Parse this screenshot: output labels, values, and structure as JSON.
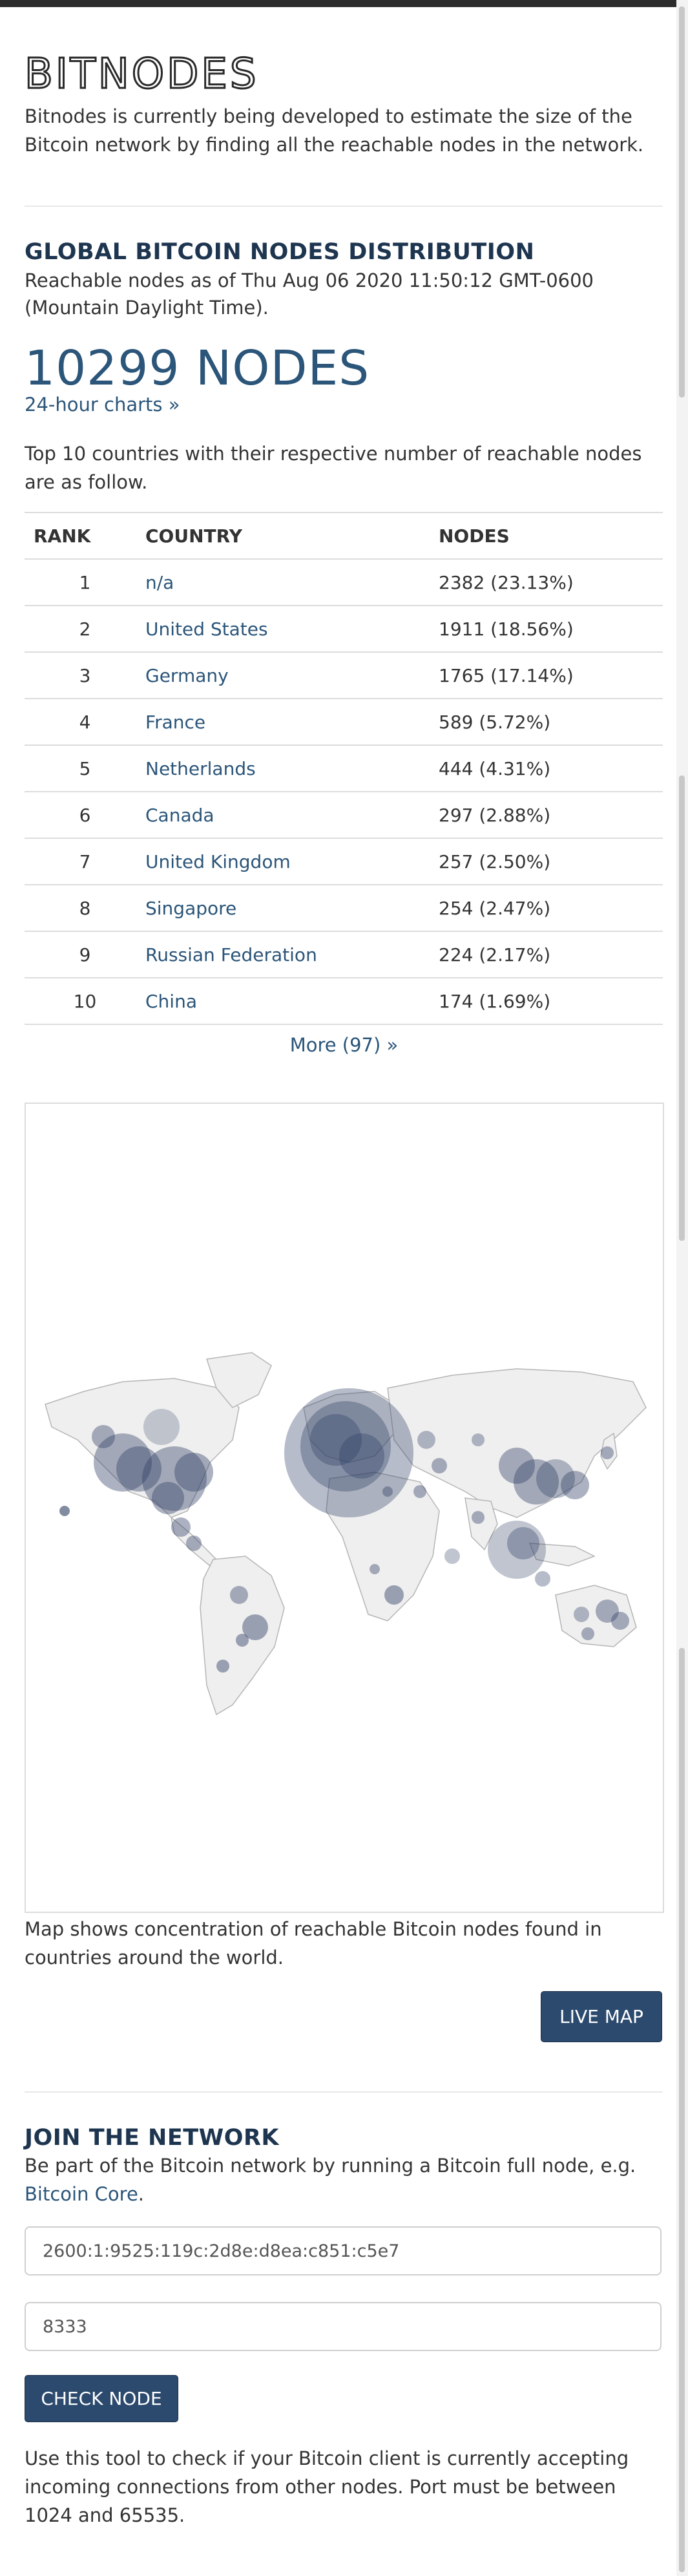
{
  "brand": {
    "name": "BITNODES"
  },
  "intro": "Bitnodes is currently being developed to estimate the size of the Bitcoin network by finding all the reachable nodes in the network.",
  "distribution": {
    "heading": "GLOBAL BITCOIN NODES DISTRIBUTION",
    "reachable_as_of": "Reachable nodes as of Thu Aug 06 2020 11:50:12 GMT-0600 (Mountain Daylight Time).",
    "total_nodes": "10299 NODES",
    "charts_link": "24-hour charts »",
    "top10_text": "Top 10 countries with their respective number of reachable nodes are as follow.",
    "columns": [
      "RANK",
      "COUNTRY",
      "NODES"
    ],
    "rows": [
      {
        "rank": "1",
        "country": "n/a",
        "nodes": "2382 (23.13%)"
      },
      {
        "rank": "2",
        "country": "United States",
        "nodes": "1911 (18.56%)"
      },
      {
        "rank": "3",
        "country": "Germany",
        "nodes": "1765 (17.14%)"
      },
      {
        "rank": "4",
        "country": "France",
        "nodes": "589 (5.72%)"
      },
      {
        "rank": "5",
        "country": "Netherlands",
        "nodes": "444 (4.31%)"
      },
      {
        "rank": "6",
        "country": "Canada",
        "nodes": "297 (2.88%)"
      },
      {
        "rank": "7",
        "country": "United Kingdom",
        "nodes": "257 (2.50%)"
      },
      {
        "rank": "8",
        "country": "Singapore",
        "nodes": "254 (2.47%)"
      },
      {
        "rank": "9",
        "country": "Russian Federation",
        "nodes": "224 (2.17%)"
      },
      {
        "rank": "10",
        "country": "China",
        "nodes": "174 (1.69%)"
      }
    ],
    "more_link": "More (97) »"
  },
  "map": {
    "caption": "Map shows concentration of reachable Bitcoin nodes found in countries around the world.",
    "live_map_button": "LIVE MAP",
    "colors": {
      "land": "#efefef",
      "border": "#b5b5b5",
      "bubble": "#2f3f63"
    }
  },
  "join": {
    "heading": "JOIN THE NETWORK",
    "text": "Be part of the Bitcoin network by running a Bitcoin full node, e.g.",
    "core_link": "Bitcoin Core",
    "core_suffix": ".",
    "address_value": "2600:1:9525:119c:2d8e:d8ea:c851:c5e7",
    "port_value": "8333",
    "check_button": "CHECK NODE",
    "tool_text": "Use this tool to check if your Bitcoin client is currently accepting incoming connections from other nodes. Port must be between 1024 and 65535."
  },
  "colors": {
    "accent": "#2b5579",
    "heading": "#1e3550",
    "button": "#2b4a6e"
  }
}
